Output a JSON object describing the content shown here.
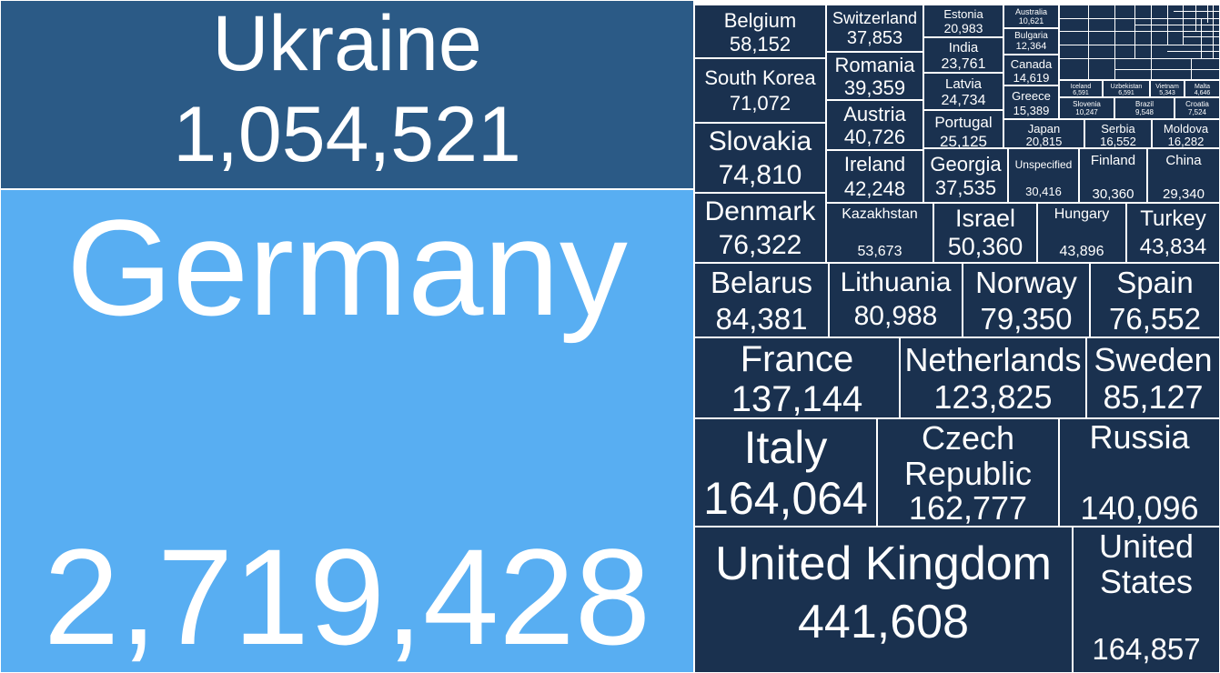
{
  "chart_data": {
    "type": "treemap",
    "title": "",
    "colors": {
      "highlight": "#58aef2",
      "top": "#2b5a86",
      "rest": "#1a314f",
      "border": "#ffffff"
    },
    "items": [
      {
        "name": "Germany",
        "value": 2719428,
        "value_label": "2,719,428"
      },
      {
        "name": "Ukraine",
        "value": 1054521,
        "value_label": "1,054,521"
      },
      {
        "name": "United Kingdom",
        "value": 441608,
        "value_label": "441,608"
      },
      {
        "name": "United States",
        "value": 164857,
        "value_label": "164,857"
      },
      {
        "name": "Italy",
        "value": 164064,
        "value_label": "164,064"
      },
      {
        "name": "Czech Republic",
        "value": 162777,
        "value_label": "162,777"
      },
      {
        "name": "Russia",
        "value": 140096,
        "value_label": "140,096"
      },
      {
        "name": "France",
        "value": 137144,
        "value_label": "137,144"
      },
      {
        "name": "Netherlands",
        "value": 123825,
        "value_label": "123,825"
      },
      {
        "name": "Sweden",
        "value": 85127,
        "value_label": "85,127"
      },
      {
        "name": "Belarus",
        "value": 84381,
        "value_label": "84,381"
      },
      {
        "name": "Lithuania",
        "value": 80988,
        "value_label": "80,988"
      },
      {
        "name": "Norway",
        "value": 79350,
        "value_label": "79,350"
      },
      {
        "name": "Spain",
        "value": 76552,
        "value_label": "76,552"
      },
      {
        "name": "Denmark",
        "value": 76322,
        "value_label": "76,322"
      },
      {
        "name": "Slovakia",
        "value": 74810,
        "value_label": "74,810"
      },
      {
        "name": "South Korea",
        "value": 71072,
        "value_label": "71,072"
      },
      {
        "name": "Belgium",
        "value": 58152,
        "value_label": "58,152"
      },
      {
        "name": "Kazakhstan",
        "value": 53673,
        "value_label": "53,673"
      },
      {
        "name": "Israel",
        "value": 50360,
        "value_label": "50,360"
      },
      {
        "name": "Hungary",
        "value": 43896,
        "value_label": "43,896"
      },
      {
        "name": "Turkey",
        "value": 43834,
        "value_label": "43,834"
      },
      {
        "name": "Ireland",
        "value": 42248,
        "value_label": "42,248"
      },
      {
        "name": "Austria",
        "value": 40726,
        "value_label": "40,726"
      },
      {
        "name": "Romania",
        "value": 39359,
        "value_label": "39,359"
      },
      {
        "name": "Switzerland",
        "value": 37853,
        "value_label": "37,853"
      },
      {
        "name": "Georgia",
        "value": 37535,
        "value_label": "37,535"
      },
      {
        "name": "Unspecified",
        "value": 30416,
        "value_label": "30,416"
      },
      {
        "name": "Finland",
        "value": 30360,
        "value_label": "30,360"
      },
      {
        "name": "China",
        "value": 29340,
        "value_label": "29,340"
      },
      {
        "name": "Portugal",
        "value": 25125,
        "value_label": "25,125"
      },
      {
        "name": "Latvia",
        "value": 24734,
        "value_label": "24,734"
      },
      {
        "name": "India",
        "value": 23761,
        "value_label": "23,761"
      },
      {
        "name": "Estonia",
        "value": 20983,
        "value_label": "20,983"
      },
      {
        "name": "Japan",
        "value": 20815,
        "value_label": "20,815"
      },
      {
        "name": "Serbia",
        "value": 16552,
        "value_label": "16,552"
      },
      {
        "name": "Moldova",
        "value": 16282,
        "value_label": "16,282"
      },
      {
        "name": "Greece",
        "value": 15389,
        "value_label": "15,389"
      },
      {
        "name": "Canada",
        "value": 14619,
        "value_label": "14,619"
      },
      {
        "name": "Bulgaria",
        "value": 12364,
        "value_label": "12,364"
      },
      {
        "name": "Australia",
        "value": 10621,
        "value_label": "10,621"
      },
      {
        "name": "Slovenia",
        "value": 10247,
        "value_label": "10,247"
      },
      {
        "name": "Brazil",
        "value": 9548,
        "value_label": "9,548"
      },
      {
        "name": "Croatia",
        "value": 7524,
        "value_label": "7,524"
      },
      {
        "name": "Iceland",
        "value": 6591,
        "value_label": "6,591"
      },
      {
        "name": "Uzbekistan",
        "value": 6591,
        "value_label": "6,591"
      },
      {
        "name": "Vietnam",
        "value": 5343,
        "value_label": "5,343"
      },
      {
        "name": "Malta",
        "value": 4646,
        "value_label": "4,646"
      }
    ]
  }
}
